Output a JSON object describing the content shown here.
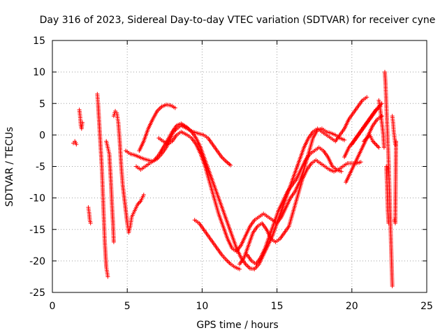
{
  "chart_data": {
    "type": "scatter",
    "title": "Day 316 of 2023, Sidereal Day-to-day VTEC variation (SDTVAR) for receiver cyne",
    "xlabel": "GPS time / hours",
    "ylabel": "SDTVAR / TECUs",
    "xlim": [
      0,
      25
    ],
    "ylim": [
      -25,
      15
    ],
    "xticks": [
      0,
      5,
      10,
      15,
      20,
      25
    ],
    "yticks": [
      -25,
      -20,
      -15,
      -10,
      -5,
      0,
      5,
      10,
      15
    ],
    "grid": true,
    "marker": "+",
    "color": "#ff0000",
    "series": [
      {
        "name": "s1",
        "points": [
          [
            1.4,
            -1.3
          ],
          [
            1.5,
            -1.0
          ],
          [
            1.6,
            -1.5
          ]
        ]
      },
      {
        "name": "s2",
        "points": [
          [
            1.8,
            4.0
          ],
          [
            1.85,
            3.0
          ],
          [
            1.9,
            1.5
          ],
          [
            1.95,
            1.0
          ],
          [
            2.0,
            2.0
          ]
        ]
      },
      {
        "name": "s3",
        "points": [
          [
            2.4,
            -11.5
          ],
          [
            2.45,
            -12.3
          ],
          [
            2.5,
            -13.5
          ],
          [
            2.55,
            -14.0
          ]
        ]
      },
      {
        "name": "s4",
        "points": [
          [
            3.0,
            6.5
          ],
          [
            3.05,
            5.0
          ],
          [
            3.1,
            3.0
          ],
          [
            3.15,
            1.0
          ],
          [
            3.2,
            -1.0
          ],
          [
            3.25,
            -3.0
          ],
          [
            3.3,
            -5.0
          ],
          [
            3.35,
            -8.0
          ],
          [
            3.4,
            -11.0
          ],
          [
            3.45,
            -14.0
          ],
          [
            3.5,
            -17.0
          ],
          [
            3.55,
            -19.0
          ],
          [
            3.6,
            -21.0
          ],
          [
            3.7,
            -22.5
          ]
        ]
      },
      {
        "name": "s5",
        "points": [
          [
            3.6,
            -1.0
          ],
          [
            3.7,
            -2.0
          ],
          [
            3.8,
            -3.0
          ],
          [
            3.9,
            -7.0
          ],
          [
            4.0,
            -12.0
          ],
          [
            4.05,
            -14.0
          ],
          [
            4.1,
            -17.0
          ]
        ]
      },
      {
        "name": "s6",
        "points": [
          [
            4.1,
            3.0
          ],
          [
            4.2,
            3.8
          ],
          [
            4.3,
            3.5
          ],
          [
            4.4,
            2.0
          ],
          [
            4.5,
            -1.0
          ],
          [
            4.6,
            -5.0
          ],
          [
            4.7,
            -8.0
          ],
          [
            4.8,
            -10.0
          ],
          [
            4.9,
            -12.0
          ],
          [
            5.0,
            -14.0
          ],
          [
            5.1,
            -15.5
          ],
          [
            5.2,
            -14.5
          ],
          [
            5.3,
            -13.0
          ],
          [
            5.5,
            -12.0
          ],
          [
            5.7,
            -11.0
          ],
          [
            5.9,
            -10.5
          ],
          [
            6.1,
            -9.5
          ]
        ]
      },
      {
        "name": "s7",
        "points": [
          [
            4.9,
            -2.5
          ],
          [
            5.2,
            -3.0
          ],
          [
            5.5,
            -3.2
          ],
          [
            5.8,
            -3.5
          ],
          [
            6.1,
            -3.8
          ],
          [
            6.4,
            -4.0
          ],
          [
            6.7,
            -4.2
          ],
          [
            7.0,
            -3.8
          ],
          [
            7.3,
            -3.0
          ],
          [
            7.6,
            -2.0
          ],
          [
            7.9,
            -0.5
          ],
          [
            8.1,
            0.5
          ],
          [
            8.3,
            1.0
          ],
          [
            8.6,
            1.5
          ],
          [
            9.0,
            1.0
          ],
          [
            9.4,
            0.5
          ],
          [
            9.8,
            0.2
          ],
          [
            10.1,
            0.0
          ],
          [
            10.4,
            -0.5
          ],
          [
            10.7,
            -1.5
          ],
          [
            11.0,
            -2.5
          ],
          [
            11.3,
            -3.5
          ],
          [
            11.6,
            -4.2
          ],
          [
            11.9,
            -4.8
          ]
        ]
      },
      {
        "name": "s8",
        "points": [
          [
            5.8,
            -2.5
          ],
          [
            6.1,
            -1.0
          ],
          [
            6.4,
            1.0
          ],
          [
            6.7,
            2.5
          ],
          [
            7.0,
            3.8
          ],
          [
            7.3,
            4.5
          ],
          [
            7.6,
            4.8
          ],
          [
            7.9,
            4.7
          ],
          [
            8.2,
            4.3
          ]
        ]
      },
      {
        "name": "s9",
        "points": [
          [
            5.6,
            -5.0
          ],
          [
            5.9,
            -5.5
          ],
          [
            6.2,
            -5.0
          ],
          [
            6.5,
            -4.5
          ],
          [
            6.8,
            -4.0
          ],
          [
            7.1,
            -3.2
          ],
          [
            7.4,
            -2.0
          ],
          [
            7.7,
            -0.8
          ],
          [
            8.0,
            0.5
          ],
          [
            8.3,
            1.5
          ],
          [
            8.6,
            1.8
          ],
          [
            9.0,
            1.2
          ],
          [
            9.3,
            0.5
          ],
          [
            9.6,
            -0.5
          ],
          [
            9.9,
            -2.0
          ],
          [
            10.2,
            -4.0
          ],
          [
            10.5,
            -6.0
          ],
          [
            10.8,
            -8.0
          ],
          [
            11.1,
            -10.0
          ],
          [
            11.4,
            -12.0
          ],
          [
            11.7,
            -14.0
          ],
          [
            12.0,
            -16.0
          ],
          [
            12.3,
            -18.0
          ],
          [
            12.6,
            -19.5
          ],
          [
            12.9,
            -20.5
          ],
          [
            13.2,
            -21.2
          ],
          [
            13.5,
            -21.3
          ],
          [
            13.8,
            -20.5
          ],
          [
            14.1,
            -19.0
          ],
          [
            14.4,
            -17.5
          ],
          [
            14.7,
            -16.0
          ],
          [
            15.0,
            -14.0
          ],
          [
            15.3,
            -12.0
          ],
          [
            15.6,
            -10.0
          ],
          [
            15.9,
            -8.0
          ],
          [
            16.2,
            -6.0
          ],
          [
            16.5,
            -4.0
          ],
          [
            16.8,
            -2.0
          ],
          [
            17.1,
            -0.5
          ],
          [
            17.4,
            0.5
          ],
          [
            17.7,
            1.0
          ],
          [
            18.0,
            0.5
          ],
          [
            18.3,
            0.0
          ],
          [
            18.6,
            -0.5
          ],
          [
            18.9,
            -1.0
          ],
          [
            19.2,
            0.0
          ],
          [
            19.5,
            1.0
          ],
          [
            19.8,
            2.5
          ],
          [
            20.1,
            3.5
          ],
          [
            20.4,
            4.5
          ],
          [
            20.7,
            5.5
          ],
          [
            21.0,
            6.0
          ]
        ]
      },
      {
        "name": "s10",
        "points": [
          [
            7.1,
            -0.5
          ],
          [
            7.4,
            -1.0
          ],
          [
            7.7,
            -1.5
          ],
          [
            8.0,
            -1.0
          ],
          [
            8.3,
            0.0
          ],
          [
            8.6,
            0.5
          ],
          [
            9.0,
            0.0
          ],
          [
            9.3,
            -0.5
          ],
          [
            9.6,
            -1.5
          ],
          [
            9.9,
            -3.0
          ],
          [
            10.2,
            -5.0
          ],
          [
            10.5,
            -7.5
          ],
          [
            10.8,
            -10.0
          ],
          [
            11.1,
            -12.5
          ],
          [
            11.4,
            -14.5
          ],
          [
            11.7,
            -16.5
          ],
          [
            12.0,
            -18.0
          ],
          [
            12.3,
            -18.5
          ],
          [
            12.6,
            -17.5
          ],
          [
            12.9,
            -16.0
          ],
          [
            13.2,
            -14.5
          ],
          [
            13.5,
            -13.5
          ],
          [
            13.8,
            -13.0
          ],
          [
            14.1,
            -12.5
          ],
          [
            14.4,
            -13.0
          ],
          [
            14.7,
            -13.5
          ],
          [
            15.0,
            -14.0
          ],
          [
            15.3,
            -13.0
          ],
          [
            15.6,
            -11.5
          ],
          [
            15.9,
            -10.0
          ],
          [
            16.2,
            -9.0
          ],
          [
            16.5,
            -7.5
          ],
          [
            16.8,
            -5.5
          ],
          [
            17.1,
            -3.0
          ],
          [
            17.4,
            -0.5
          ],
          [
            17.7,
            0.8
          ],
          [
            18.0,
            1.0
          ],
          [
            18.3,
            0.5
          ],
          [
            18.6,
            0.3
          ],
          [
            18.9,
            0.0
          ],
          [
            19.2,
            -0.5
          ],
          [
            19.5,
            -0.8
          ]
        ]
      },
      {
        "name": "s11",
        "points": [
          [
            9.5,
            -13.5
          ],
          [
            9.8,
            -14.0
          ],
          [
            10.1,
            -15.0
          ],
          [
            10.4,
            -16.0
          ],
          [
            10.7,
            -17.0
          ],
          [
            11.0,
            -18.0
          ],
          [
            11.3,
            -19.0
          ],
          [
            11.6,
            -19.8
          ],
          [
            11.9,
            -20.5
          ],
          [
            12.2,
            -21.0
          ],
          [
            12.5,
            -21.3
          ]
        ]
      },
      {
        "name": "s12",
        "points": [
          [
            12.5,
            -20.5
          ],
          [
            12.8,
            -19.5
          ],
          [
            13.1,
            -17.5
          ],
          [
            13.4,
            -15.5
          ],
          [
            13.7,
            -14.5
          ],
          [
            14.0,
            -14.0
          ],
          [
            14.3,
            -15.0
          ],
          [
            14.6,
            -16.5
          ],
          [
            14.9,
            -17.0
          ],
          [
            15.2,
            -16.5
          ],
          [
            15.5,
            -15.5
          ],
          [
            15.8,
            -14.5
          ],
          [
            16.1,
            -12.0
          ],
          [
            16.4,
            -9.5
          ],
          [
            16.7,
            -7.0
          ],
          [
            17.0,
            -5.5
          ],
          [
            17.3,
            -4.5
          ],
          [
            17.6,
            -4.0
          ],
          [
            17.9,
            -4.5
          ],
          [
            18.2,
            -5.0
          ],
          [
            18.5,
            -5.5
          ],
          [
            18.8,
            -5.8
          ],
          [
            19.1,
            -5.5
          ],
          [
            19.4,
            -5.0
          ],
          [
            19.7,
            -4.5
          ],
          [
            20.0,
            -4.5
          ],
          [
            20.3,
            -4.5
          ],
          [
            20.6,
            -4.3
          ]
        ]
      },
      {
        "name": "s13",
        "points": [
          [
            13.0,
            -19.0
          ],
          [
            13.3,
            -20.0
          ],
          [
            13.6,
            -20.5
          ],
          [
            13.9,
            -19.5
          ],
          [
            14.2,
            -18.0
          ],
          [
            14.5,
            -16.0
          ],
          [
            14.8,
            -14.0
          ],
          [
            15.1,
            -12.0
          ],
          [
            15.4,
            -10.5
          ],
          [
            15.7,
            -9.0
          ],
          [
            16.0,
            -8.0
          ],
          [
            16.3,
            -7.0
          ],
          [
            16.6,
            -5.5
          ],
          [
            16.9,
            -4.0
          ],
          [
            17.2,
            -3.0
          ],
          [
            17.5,
            -2.5
          ],
          [
            17.8,
            -2.0
          ],
          [
            18.1,
            -2.5
          ],
          [
            18.4,
            -3.5
          ],
          [
            18.7,
            -5.0
          ],
          [
            19.0,
            -5.5
          ],
          [
            19.3,
            -5.8
          ]
        ]
      },
      {
        "name": "s14",
        "points": [
          [
            19.5,
            -3.5
          ],
          [
            19.8,
            -2.0
          ],
          [
            20.1,
            -1.0
          ],
          [
            20.4,
            0.0
          ],
          [
            20.7,
            1.0
          ],
          [
            21.0,
            2.0
          ],
          [
            21.3,
            3.0
          ],
          [
            21.6,
            4.0
          ],
          [
            21.9,
            4.5
          ]
        ]
      },
      {
        "name": "s15",
        "points": [
          [
            19.6,
            -7.5
          ],
          [
            19.9,
            -6.0
          ],
          [
            20.2,
            -4.5
          ],
          [
            20.5,
            -3.0
          ],
          [
            20.8,
            -1.5
          ],
          [
            21.1,
            0.0
          ],
          [
            21.4,
            1.5
          ],
          [
            21.7,
            2.5
          ],
          [
            22.0,
            3.0
          ]
        ]
      },
      {
        "name": "s16",
        "points": [
          [
            20.0,
            -1.5
          ],
          [
            20.3,
            -0.5
          ],
          [
            20.6,
            0.5
          ],
          [
            20.9,
            1.5
          ],
          [
            21.2,
            2.5
          ],
          [
            21.5,
            3.5
          ],
          [
            21.8,
            4.5
          ],
          [
            22.0,
            5.0
          ]
        ]
      },
      {
        "name": "s17",
        "points": [
          [
            21.8,
            5.5
          ],
          [
            21.9,
            4.0
          ],
          [
            22.0,
            2.0
          ],
          [
            22.1,
            0.0
          ],
          [
            22.15,
            -2.0
          ]
        ]
      },
      {
        "name": "s18",
        "points": [
          [
            20.8,
            -1.0
          ],
          [
            21.0,
            -0.5
          ],
          [
            21.2,
            0.0
          ],
          [
            21.4,
            -1.0
          ],
          [
            21.6,
            -1.5
          ],
          [
            21.8,
            -2.0
          ]
        ]
      },
      {
        "name": "s19",
        "points": [
          [
            22.2,
            10.0
          ],
          [
            22.25,
            8.0
          ],
          [
            22.3,
            5.0
          ],
          [
            22.35,
            2.0
          ],
          [
            22.4,
            -1.0
          ],
          [
            22.45,
            -4.0
          ],
          [
            22.5,
            -8.0
          ],
          [
            22.55,
            -12.0
          ],
          [
            22.6,
            -16.0
          ],
          [
            22.65,
            -20.0
          ],
          [
            22.7,
            -24.0
          ]
        ]
      },
      {
        "name": "s20",
        "points": [
          [
            22.3,
            -5.0
          ],
          [
            22.35,
            -8.0
          ],
          [
            22.4,
            -12.0
          ],
          [
            22.45,
            -14.0
          ]
        ]
      },
      {
        "name": "s21",
        "points": [
          [
            22.7,
            3.0
          ],
          [
            22.75,
            2.0
          ],
          [
            22.8,
            0.5
          ],
          [
            22.85,
            -0.5
          ],
          [
            22.9,
            -1.5
          ],
          [
            22.95,
            -1.0
          ],
          [
            22.9,
            -14.0
          ],
          [
            22.85,
            -13.5
          ]
        ]
      }
    ]
  }
}
